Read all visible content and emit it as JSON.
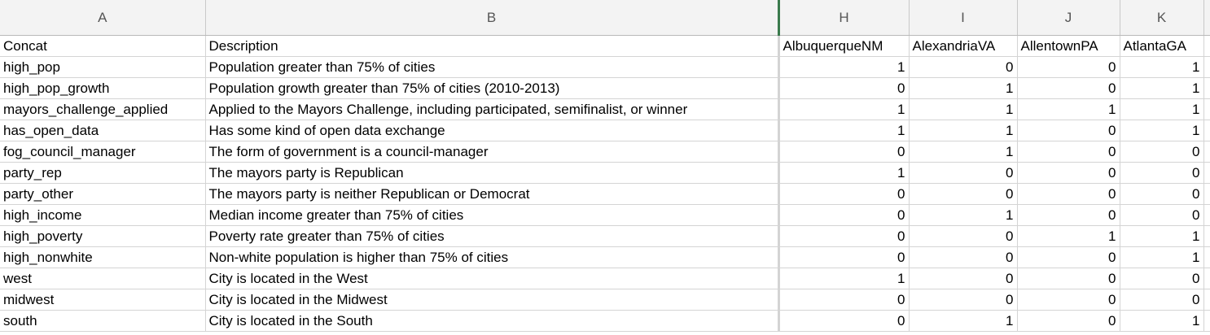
{
  "columns": [
    "A",
    "B",
    "H",
    "I",
    "J",
    "K"
  ],
  "header_row": {
    "concat": "Concat",
    "description": "Description",
    "cities": [
      "AlbuquerqueNM",
      "AlexandriaVA",
      "AllentownPA",
      "AtlantaGA"
    ]
  },
  "rows": [
    {
      "concat": "high_pop",
      "description": "Population greater than 75% of cities",
      "values": [
        1,
        0,
        0,
        1
      ]
    },
    {
      "concat": "high_pop_growth",
      "description": "Population growth greater than 75% of cities (2010-2013)",
      "values": [
        0,
        1,
        0,
        1
      ]
    },
    {
      "concat": "mayors_challenge_applied",
      "description": "Applied to the Mayors Challenge, including participated, semifinalist, or winner",
      "values": [
        1,
        1,
        1,
        1
      ]
    },
    {
      "concat": "has_open_data",
      "description": "Has some kind of open data exchange",
      "values": [
        1,
        1,
        0,
        1
      ]
    },
    {
      "concat": "fog_council_manager",
      "description": "The form of government is a council-manager",
      "values": [
        0,
        1,
        0,
        0
      ]
    },
    {
      "concat": "party_rep",
      "description": "The mayors party is Republican",
      "values": [
        1,
        0,
        0,
        0
      ]
    },
    {
      "concat": "party_other",
      "description": "The mayors party is neither Republican or Democrat",
      "values": [
        0,
        0,
        0,
        0
      ]
    },
    {
      "concat": "high_income",
      "description": "Median income greater than 75% of cities",
      "values": [
        0,
        1,
        0,
        0
      ]
    },
    {
      "concat": "high_poverty",
      "description": "Poverty rate greater than 75% of cities",
      "values": [
        0,
        0,
        1,
        1
      ]
    },
    {
      "concat": "high_nonwhite",
      "description": "Non-white population is higher than 75% of cities",
      "values": [
        0,
        0,
        0,
        1
      ]
    },
    {
      "concat": "west",
      "description": "City is located in the West",
      "values": [
        1,
        0,
        0,
        0
      ]
    },
    {
      "concat": "midwest",
      "description": "City is located in the Midwest",
      "values": [
        0,
        0,
        0,
        0
      ]
    },
    {
      "concat": "south",
      "description": "City is located in the South",
      "values": [
        0,
        1,
        0,
        1
      ]
    }
  ]
}
